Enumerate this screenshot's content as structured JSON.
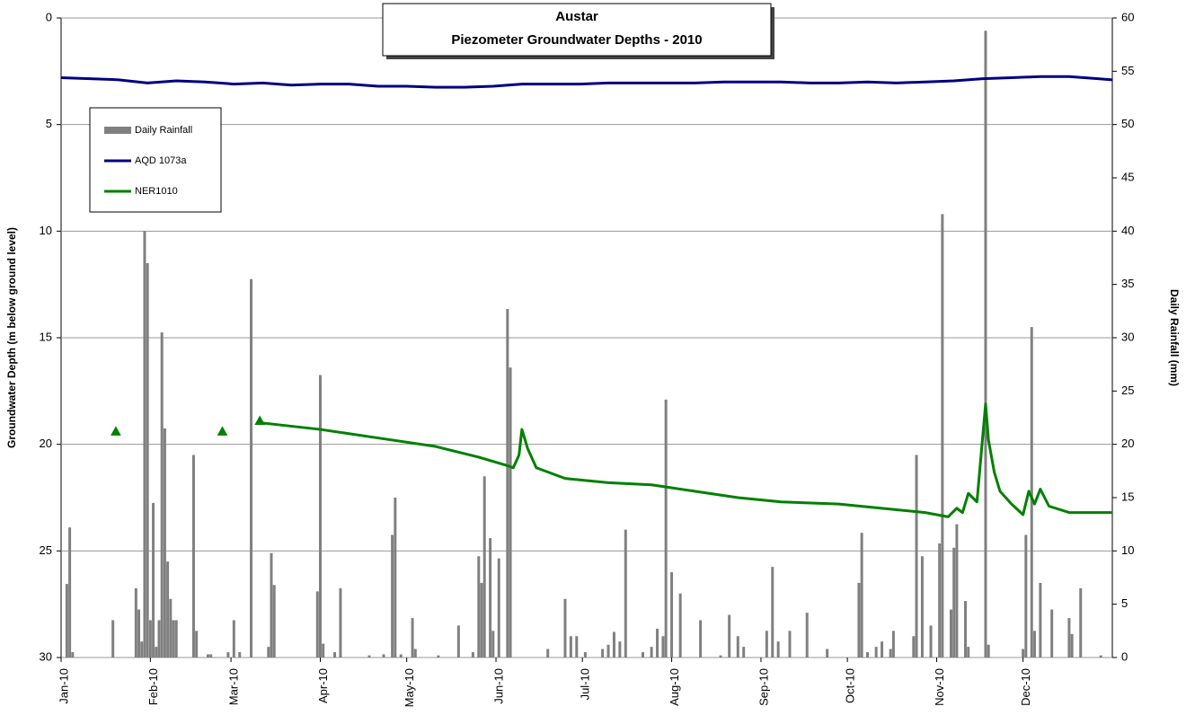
{
  "chart_data": {
    "type": "combo",
    "title": "Austar",
    "subtitle": "Piezometer Groundwater Depths - 2010",
    "y_label": "Groundwater Depth (m below ground level)",
    "y2_label": "Daily Rainfall (mm)",
    "xlim": [
      0,
      365
    ],
    "xticks": [
      {
        "value": 0,
        "label": "Jan-10"
      },
      {
        "value": 31,
        "label": "Feb-10"
      },
      {
        "value": 59,
        "label": "Mar-10"
      },
      {
        "value": 90,
        "label": "Apr-10"
      },
      {
        "value": 120,
        "label": "May-10"
      },
      {
        "value": 151,
        "label": "Jun-10"
      },
      {
        "value": 181,
        "label": "Jul-10"
      },
      {
        "value": 212,
        "label": "Aug-10"
      },
      {
        "value": 243,
        "label": "Sep-10"
      },
      {
        "value": 273,
        "label": "Oct-10"
      },
      {
        "value": 304,
        "label": "Nov-10"
      },
      {
        "value": 334,
        "label": "Dec-10"
      }
    ],
    "ylim": [
      0,
      30
    ],
    "yticks": [
      0,
      5,
      10,
      15,
      20,
      25,
      30
    ],
    "y_inverted": true,
    "y2lim": [
      0,
      60
    ],
    "y2ticks": [
      0,
      5,
      10,
      15,
      20,
      25,
      30,
      35,
      40,
      45,
      50,
      55,
      60
    ],
    "grid": true,
    "legend": "upper-left",
    "series": [
      {
        "name": "Daily Rainfall",
        "type": "bar",
        "axis": "y2",
        "color": "#808080",
        "x": [
          2,
          3,
          4,
          18,
          26,
          27,
          28,
          29,
          30,
          31,
          32,
          33,
          34,
          35,
          36,
          37,
          38,
          39,
          40,
          46,
          47,
          51,
          52,
          58,
          60,
          62,
          66,
          72,
          73,
          74,
          89,
          90,
          91,
          95,
          97,
          107,
          112,
          115,
          116,
          118,
          122,
          123,
          131,
          138,
          143,
          145,
          146,
          147,
          149,
          150,
          152,
          155,
          156,
          169,
          175,
          177,
          179,
          182,
          188,
          190,
          192,
          194,
          196,
          202,
          205,
          207,
          209,
          210,
          212,
          215,
          222,
          229,
          232,
          235,
          237,
          245,
          247,
          249,
          253,
          259,
          266,
          277,
          278,
          280,
          283,
          285,
          288,
          289,
          296,
          297,
          299,
          302,
          305,
          306,
          309,
          310,
          311,
          314,
          315,
          321,
          322,
          334,
          335,
          337,
          338,
          340,
          344,
          350,
          351,
          354,
          361
        ],
        "values": [
          6.9,
          12.2,
          0.5,
          3.5,
          6.5,
          4.5,
          1.5,
          40,
          37,
          3.5,
          14.5,
          1,
          3.5,
          30.5,
          21.5,
          9,
          5.5,
          3.5,
          3.5,
          19,
          2.5,
          0.3,
          0.3,
          0.5,
          3.5,
          0.5,
          35.5,
          1,
          9.8,
          6.8,
          6.2,
          26.5,
          1.3,
          0.5,
          6.5,
          0.2,
          0.3,
          11.5,
          15,
          0.3,
          3.7,
          0.8,
          0.2,
          3,
          0.5,
          9.5,
          7,
          17,
          11.2,
          2.5,
          9.3,
          32.7,
          27.2,
          0.8,
          5.5,
          2,
          2,
          0.5,
          0.8,
          1.2,
          2.4,
          1.5,
          12,
          0.5,
          1,
          2.7,
          2,
          24.2,
          8,
          6,
          3.5,
          0.2,
          4,
          2,
          1,
          2.5,
          8.5,
          1.5,
          2.5,
          4.2,
          0.8,
          7,
          11.7,
          0.5,
          1,
          1.5,
          0.8,
          2.5,
          2,
          19,
          9.5,
          3,
          10.7,
          41.6,
          4.5,
          10.3,
          12.5,
          5.3,
          1,
          58.8,
          1.2,
          0.8,
          11.5,
          31,
          2.5,
          7,
          4.5,
          3.7,
          2.2,
          6.5,
          0.2
        ]
      },
      {
        "name": "AQD 1073a",
        "type": "line",
        "axis": "y",
        "color": "#000080",
        "x": [
          0,
          10,
          20,
          30,
          40,
          50,
          60,
          70,
          80,
          90,
          100,
          110,
          120,
          130,
          140,
          150,
          160,
          170,
          180,
          190,
          200,
          210,
          220,
          230,
          240,
          250,
          260,
          270,
          280,
          290,
          300,
          310,
          320,
          330,
          340,
          350,
          360,
          365
        ],
        "values": [
          2.8,
          2.85,
          2.9,
          3.05,
          2.95,
          3.0,
          3.1,
          3.05,
          3.15,
          3.1,
          3.1,
          3.2,
          3.2,
          3.25,
          3.25,
          3.2,
          3.1,
          3.1,
          3.1,
          3.05,
          3.05,
          3.05,
          3.05,
          3.0,
          3.0,
          3.0,
          3.05,
          3.05,
          3.0,
          3.05,
          3.0,
          2.95,
          2.85,
          2.8,
          2.75,
          2.75,
          2.85,
          2.9
        ]
      },
      {
        "name": "NER1010",
        "type": "line",
        "axis": "y",
        "color": "#008000",
        "x": [
          19,
          37,
          56,
          62,
          69,
          69.5,
          70,
          90,
          110,
          130,
          145,
          155,
          157,
          159,
          160,
          162,
          165,
          175,
          190,
          205,
          220,
          235,
          250,
          270,
          285,
          300,
          308,
          311,
          313,
          315,
          318,
          321,
          322,
          324,
          326,
          330,
          334,
          336,
          338,
          340,
          343,
          350,
          365
        ],
        "values": [
          19.4,
          null,
          19.4,
          null,
          18.9,
          null,
          19.0,
          19.3,
          19.7,
          20.1,
          20.6,
          21.0,
          21.1,
          20.5,
          19.3,
          20.2,
          21.1,
          21.6,
          21.8,
          21.9,
          22.2,
          22.5,
          22.7,
          22.8,
          23.0,
          23.2,
          23.4,
          23.0,
          23.2,
          22.3,
          22.7,
          18.1,
          19.8,
          21.3,
          22.2,
          22.8,
          23.3,
          22.2,
          22.8,
          22.1,
          22.9,
          23.2,
          23.2
        ]
      }
    ]
  }
}
